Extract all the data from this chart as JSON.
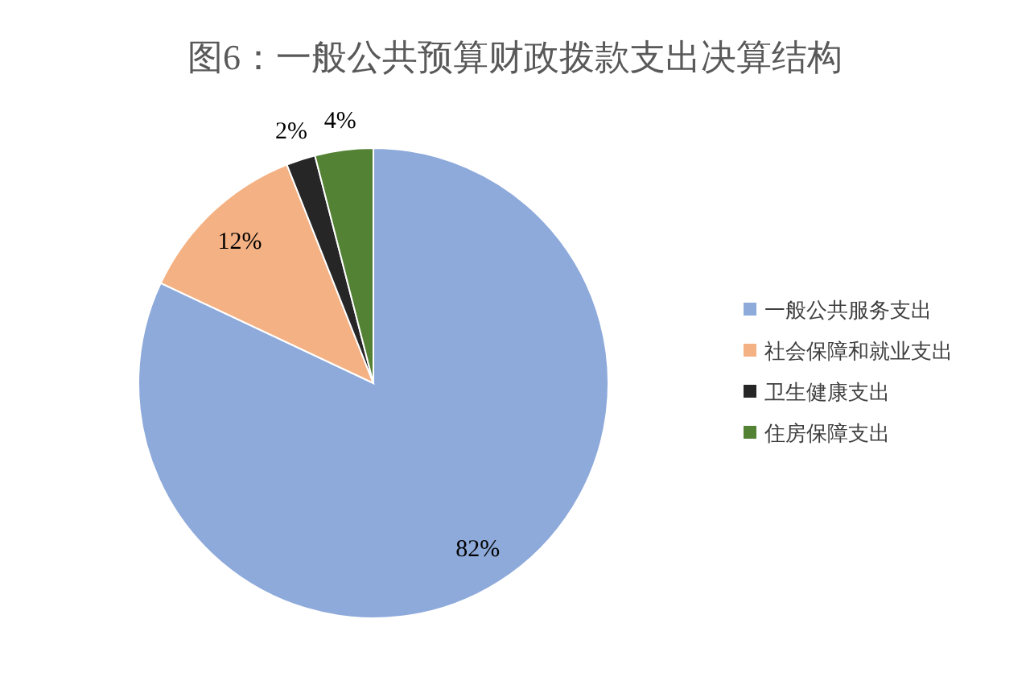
{
  "chart_data": {
    "type": "pie",
    "title": "图6：一般公共预算财政拨款支出决算结构",
    "categories": [
      "一般公共服务支出",
      "社会保障和就业支出",
      "卫生健康支出",
      "住房保障支出"
    ],
    "values": [
      82,
      12,
      2,
      4
    ],
    "colors": [
      "#8eaadb",
      "#f4b183",
      "#262626",
      "#548235"
    ],
    "value_labels": [
      "82%",
      "12%",
      "2%",
      "4%"
    ],
    "legend": "right"
  }
}
